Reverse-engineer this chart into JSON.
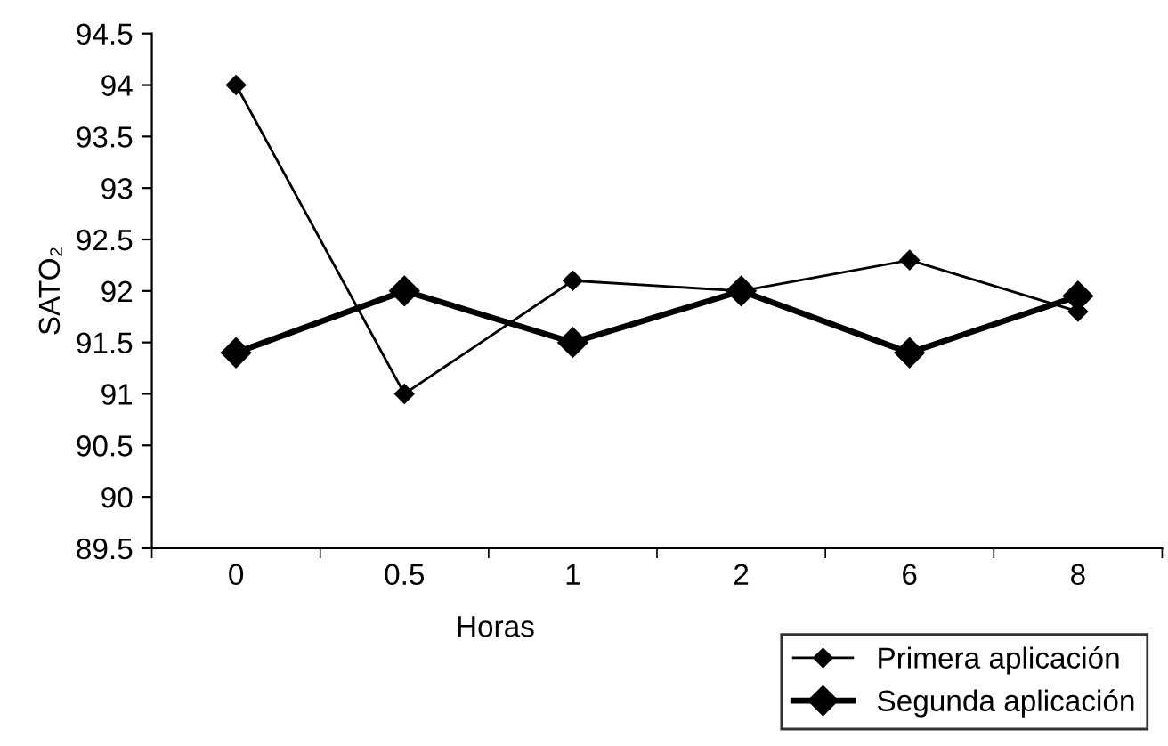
{
  "chart_data": {
    "type": "line",
    "xlabel": "Horas",
    "ylabel": "SATO₂",
    "categories": [
      "0",
      "0.5",
      "1",
      "2",
      "6",
      "8"
    ],
    "ylim": [
      89.5,
      94.5
    ],
    "yticks": [
      89.5,
      90,
      90.5,
      91,
      91.5,
      92,
      92.5,
      93,
      93.5,
      94,
      94.5
    ],
    "marker": "diamond",
    "line_style": "solid",
    "grid": false,
    "legend": "bottom right",
    "series": [
      {
        "name": "Primera aplicación",
        "color": "#000000",
        "values": [
          94.0,
          91.0,
          92.1,
          92.0,
          92.3,
          91.8
        ]
      },
      {
        "name": "Segunda aplicación",
        "color": "#000000",
        "values": [
          91.4,
          92.0,
          91.5,
          92.0,
          91.4,
          91.95
        ]
      }
    ]
  }
}
